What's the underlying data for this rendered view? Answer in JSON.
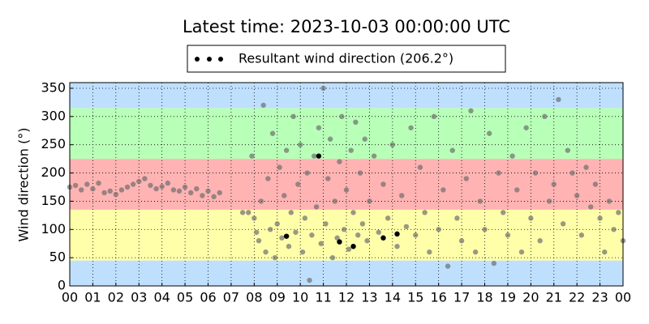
{
  "chart_data": {
    "type": "scatter",
    "title": "Latest time: 2023-10-03 00:00:00 UTC",
    "y_label": "Wind direction (°)",
    "xlim": [
      0,
      24
    ],
    "xticks": [
      {
        "value": 0,
        "label": "00"
      },
      {
        "value": 1,
        "label": "01"
      },
      {
        "value": 2,
        "label": "02"
      },
      {
        "value": 3,
        "label": "03"
      },
      {
        "value": 4,
        "label": "04"
      },
      {
        "value": 5,
        "label": "05"
      },
      {
        "value": 6,
        "label": "06"
      },
      {
        "value": 7,
        "label": "07"
      },
      {
        "value": 8,
        "label": "08"
      },
      {
        "value": 9,
        "label": "09"
      },
      {
        "value": 10,
        "label": "10"
      },
      {
        "value": 11,
        "label": "11"
      },
      {
        "value": 12,
        "label": "12"
      },
      {
        "value": 13,
        "label": "13"
      },
      {
        "value": 14,
        "label": "14"
      },
      {
        "value": 15,
        "label": "15"
      },
      {
        "value": 16,
        "label": "16"
      },
      {
        "value": 17,
        "label": "17"
      },
      {
        "value": 18,
        "label": "18"
      },
      {
        "value": 19,
        "label": "19"
      },
      {
        "value": 20,
        "label": "20"
      },
      {
        "value": 21,
        "label": "21"
      },
      {
        "value": 22,
        "label": "22"
      },
      {
        "value": 23,
        "label": "23"
      },
      {
        "value": 24,
        "label": "00"
      }
    ],
    "ylim": [
      0,
      360
    ],
    "yticks": [
      0,
      50,
      100,
      150,
      200,
      250,
      300,
      350
    ],
    "grid": true,
    "legend": "top",
    "bands": [
      {
        "from": 0,
        "to": 45,
        "color": "#bfdfff"
      },
      {
        "from": 45,
        "to": 135,
        "color": "#ffffaa"
      },
      {
        "from": 135,
        "to": 225,
        "color": "#ffb3b3"
      },
      {
        "from": 225,
        "to": 315,
        "color": "#b8ffb8"
      },
      {
        "from": 315,
        "to": 360,
        "color": "#bfdfff"
      }
    ],
    "series": [
      {
        "color": "#6e6e6e",
        "x": [
          0,
          0.25,
          0.5,
          0.75,
          1,
          1.25,
          1.5,
          1.75,
          2,
          2.25,
          2.5,
          2.75,
          3,
          3.25,
          3.5,
          3.75,
          4,
          4.25,
          4.5,
          4.75,
          5,
          5.25,
          5.5,
          5.75,
          6,
          6.25,
          6.5,
          7.5,
          7.75,
          7.9,
          8,
          8.1,
          8.2,
          8.3,
          8.4,
          8.5,
          8.6,
          8.7,
          8.8,
          8.9,
          9,
          9.1,
          9.2,
          9.3,
          9.4,
          9.5,
          9.6,
          9.7,
          9.8,
          9.9,
          10,
          10.1,
          10.2,
          10.3,
          10.4,
          10.5,
          10.6,
          10.7,
          10.8,
          10.9,
          11,
          11.1,
          11.2,
          11.3,
          11.4,
          11.5,
          11.6,
          11.7,
          11.8,
          11.9,
          12,
          12.1,
          12.2,
          12.3,
          12.4,
          12.5,
          12.6,
          12.7,
          12.8,
          12.9,
          13,
          13.2,
          13.4,
          13.6,
          13.8,
          14,
          14.2,
          14.4,
          14.6,
          14.8,
          15,
          15.2,
          15.4,
          15.6,
          15.8,
          16,
          16.2,
          16.4,
          16.6,
          16.8,
          17,
          17.2,
          17.4,
          17.6,
          17.8,
          18,
          18.2,
          18.4,
          18.6,
          18.8,
          19,
          19.2,
          19.4,
          19.6,
          19.8,
          20,
          20.2,
          20.4,
          20.6,
          20.8,
          21,
          21.2,
          21.4,
          21.6,
          21.8,
          22,
          22.2,
          22.4,
          22.6,
          22.8,
          23,
          23.2,
          23.4,
          23.6,
          23.8,
          24
        ],
        "values": [
          175,
          178,
          170,
          180,
          172,
          182,
          165,
          168,
          162,
          170,
          175,
          180,
          185,
          190,
          178,
          172,
          176,
          182,
          170,
          168,
          175,
          165,
          172,
          160,
          168,
          158,
          165,
          130,
          130,
          230,
          120,
          95,
          80,
          150,
          320,
          60,
          190,
          100,
          270,
          50,
          110,
          210,
          85,
          160,
          240,
          70,
          130,
          300,
          95,
          180,
          250,
          60,
          120,
          200,
          10,
          90,
          230,
          140,
          280,
          75,
          350,
          110,
          190,
          260,
          50,
          150,
          85,
          220,
          300,
          100,
          170,
          65,
          240,
          130,
          290,
          90,
          200,
          110,
          260,
          80,
          150,
          230,
          95,
          180,
          120,
          250,
          70,
          160,
          105,
          280,
          90,
          210,
          130,
          60,
          300,
          100,
          170,
          35,
          240,
          120,
          80,
          190,
          310,
          60,
          150,
          100,
          270,
          40,
          200,
          130,
          90,
          230,
          170,
          60,
          280,
          120,
          200,
          80,
          300,
          150,
          180,
          330,
          110,
          240,
          200,
          160,
          90,
          210,
          140,
          180,
          120,
          60,
          150,
          100,
          130,
          80
        ]
      },
      {
        "name": "Resultant wind direction (206.2°)",
        "color": "#000000",
        "x": [
          9.4,
          10.8,
          11.7,
          12.3,
          13.6,
          14.2
        ],
        "values": [
          88,
          230,
          78,
          70,
          85,
          92
        ]
      }
    ]
  }
}
